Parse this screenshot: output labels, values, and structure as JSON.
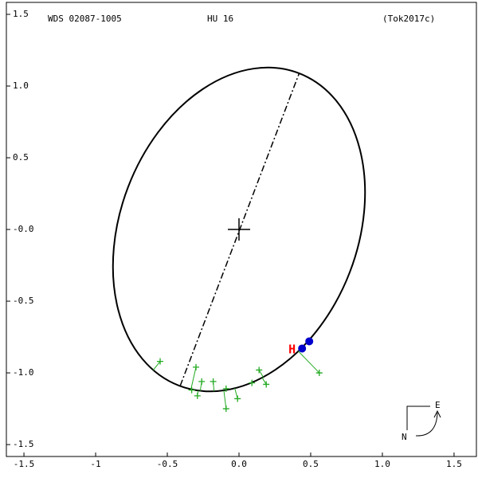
{
  "chart_data": {
    "type": "orbit",
    "header": [
      "WDS 02087-1005",
      "HU   16",
      "(Tok2017c)"
    ],
    "xlim": [
      -1.667,
      1.667
    ],
    "ylim": [
      -1.733,
      1.6
    ],
    "xticks": [
      -1.5,
      -1.0,
      -0.5,
      {
        "value": 0,
        "label": "0.0"
      },
      0.5,
      {
        "value": 1,
        "label": "1.0"
      },
      1.5
    ],
    "yticks": [
      1.5,
      {
        "value": 1,
        "label": "1.0"
      },
      0.5,
      {
        "value": 0,
        "label": "-0.0"
      },
      -0.5,
      {
        "value": -1,
        "label": "-1.0"
      },
      -1.5
    ],
    "orbit": {
      "center": [
        0.0,
        0.0
      ],
      "semi_major": 1.167,
      "semi_minor": 0.828,
      "angle_deg": 69,
      "color": "#000000"
    },
    "apsides": {
      "x": [
        -0.41,
        0.42
      ],
      "y": [
        -1.09,
        1.09
      ]
    },
    "observations": {
      "color": "#22aa22",
      "x": [
        -0.55,
        -0.3,
        -0.26,
        -0.18,
        -0.33,
        -0.29,
        -0.09,
        -0.01,
        -0.09,
        0.14,
        0.19,
        0.09,
        0.56
      ],
      "y": [
        -0.92,
        -0.96,
        -1.06,
        -1.06,
        -1.12,
        -1.16,
        -1.11,
        -1.18,
        -1.25,
        -0.98,
        -1.08,
        -1.07,
        -1.0
      ]
    },
    "recent": {
      "color": "#0000cc",
      "x": [
        0.44,
        0.49
      ],
      "y": [
        -0.83,
        -0.78
      ]
    },
    "h_marker": {
      "label": "H",
      "color": "#ff0000",
      "x": 0.37,
      "y": -0.84
    },
    "compass": {
      "east": "E",
      "north": "N"
    }
  }
}
